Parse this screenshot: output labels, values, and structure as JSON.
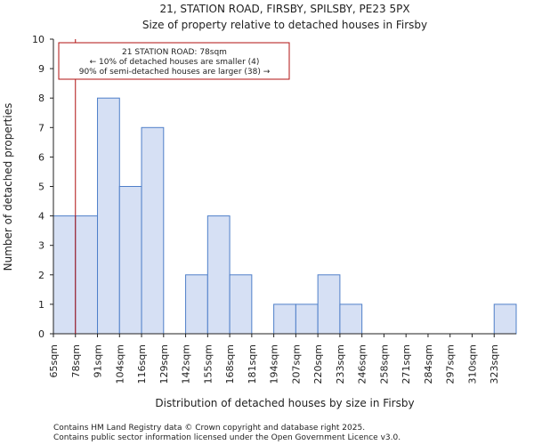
{
  "chart_data": {
    "type": "bar",
    "title": "21, STATION ROAD, FIRSBY, SPILSBY, PE23 5PX",
    "subtitle": "Size of property relative to detached houses in Firsby",
    "xlabel": "Distribution of detached houses by size in Firsby",
    "ylabel": "Number of detached properties",
    "categories": [
      "65sqm",
      "78sqm",
      "91sqm",
      "104sqm",
      "116sqm",
      "129sqm",
      "142sqm",
      "155sqm",
      "168sqm",
      "181sqm",
      "194sqm",
      "207sqm",
      "220sqm",
      "233sqm",
      "246sqm",
      "258sqm",
      "271sqm",
      "284sqm",
      "297sqm",
      "310sqm",
      "323sqm"
    ],
    "values": [
      4,
      4,
      8,
      5,
      7,
      0,
      2,
      4,
      2,
      0,
      1,
      1,
      2,
      1,
      0,
      0,
      0,
      0,
      0,
      0,
      1
    ],
    "ylim": [
      0,
      10
    ],
    "yticks": [
      0,
      1,
      2,
      3,
      4,
      5,
      6,
      7,
      8,
      9,
      10
    ],
    "grid": false,
    "bar_fill": "#d6e0f4",
    "bar_edge": "#4f7fc9",
    "marker": {
      "value": 78,
      "color": "#b01010",
      "annotation": [
        "21 STATION ROAD: 78sqm",
        "← 10% of detached houses are smaller (4)",
        "90% of semi-detached houses are larger (38) →"
      ]
    }
  },
  "footer": [
    "Contains HM Land Registry data © Crown copyright and database right 2025.",
    "Contains public sector information licensed under the Open Government Licence v3.0."
  ]
}
